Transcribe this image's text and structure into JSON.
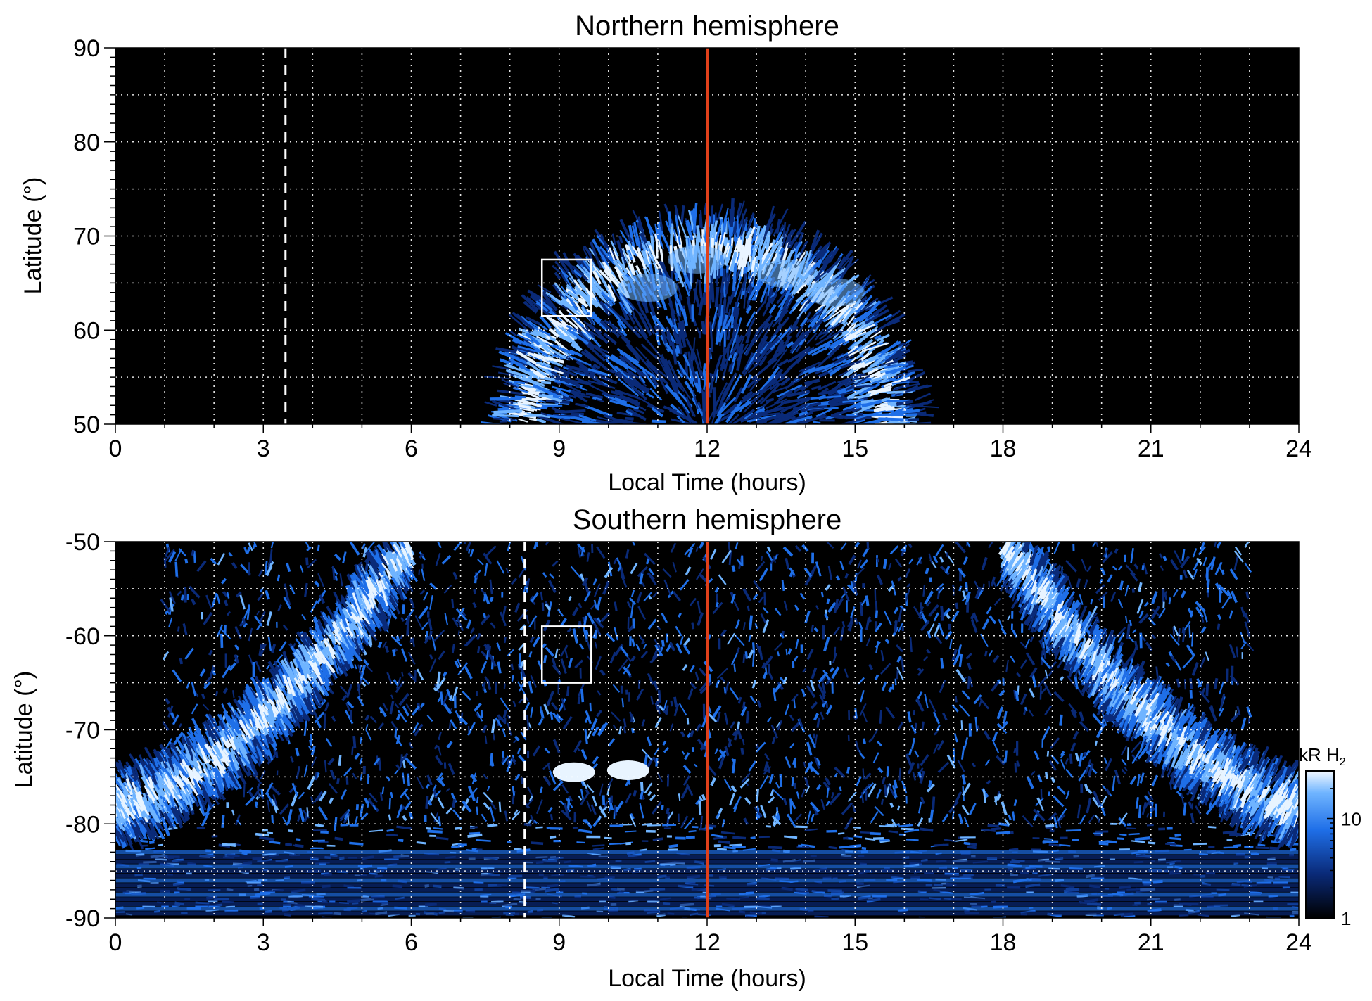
{
  "chart_data": [
    {
      "type": "heatmap",
      "title": "Northern hemisphere",
      "xlabel": "Local Time (hours)",
      "ylabel": "Latitude (°)",
      "xlim": [
        0,
        24
      ],
      "ylim": [
        50,
        90
      ],
      "xticks": [
        "0",
        "3",
        "6",
        "9",
        "12",
        "15",
        "18",
        "21",
        "24"
      ],
      "yticks": [
        "50",
        "60",
        "70",
        "80",
        "90"
      ],
      "grid": true,
      "reference_lines": [
        {
          "x": 12,
          "style": "solid",
          "color": "#e0401a"
        },
        {
          "x": 3.45,
          "style": "dashed",
          "color": "#ffffff"
        }
      ],
      "box": {
        "x": [
          8.65,
          9.65
        ],
        "y": [
          61.5,
          67.5
        ]
      },
      "emission": {
        "coverage_lt": [
          7.6,
          16.5
        ],
        "oval_center_lt": 12,
        "oval_peak_lat": 65,
        "outer_edge_lat": 73
      }
    },
    {
      "type": "heatmap",
      "title": "Southern hemisphere",
      "xlabel": "Local Time (hours)",
      "ylabel": "Latitude (°)",
      "xlim": [
        0,
        24
      ],
      "ylim": [
        -90,
        -50
      ],
      "xticks": [
        "0",
        "3",
        "6",
        "9",
        "12",
        "15",
        "18",
        "21",
        "24"
      ],
      "yticks": [
        "-90",
        "-80",
        "-70",
        "-60",
        "-50"
      ],
      "grid": true,
      "reference_lines": [
        {
          "x": 12,
          "style": "solid",
          "color": "#e0401a"
        },
        {
          "x": 8.3,
          "style": "dashed",
          "color": "#ffffff"
        }
      ],
      "box": {
        "x": [
          8.65,
          9.65
        ],
        "y": [
          -65,
          -59
        ]
      },
      "colorbar": {
        "label": "kR H",
        "label_sub": "2",
        "ticks": [
          "1",
          "10"
        ],
        "scale": "log",
        "range": [
          1,
          30
        ]
      },
      "emission": {
        "coverage_lt": [
          0,
          24
        ],
        "left_arc_lt": [
          0,
          6
        ],
        "right_arc_lt": [
          18,
          24
        ],
        "bright_spots": [
          {
            "lt": 9.3,
            "lat": -74.5
          },
          {
            "lt": 10.4,
            "lat": -74.3
          }
        ]
      }
    }
  ],
  "colors": {
    "background": "#000000",
    "dim": "#0a2a78",
    "mid": "#1f6fe8",
    "bright": "#6fb4ff",
    "peak": "#e8f4ff",
    "noon_line": "#e0401a"
  }
}
